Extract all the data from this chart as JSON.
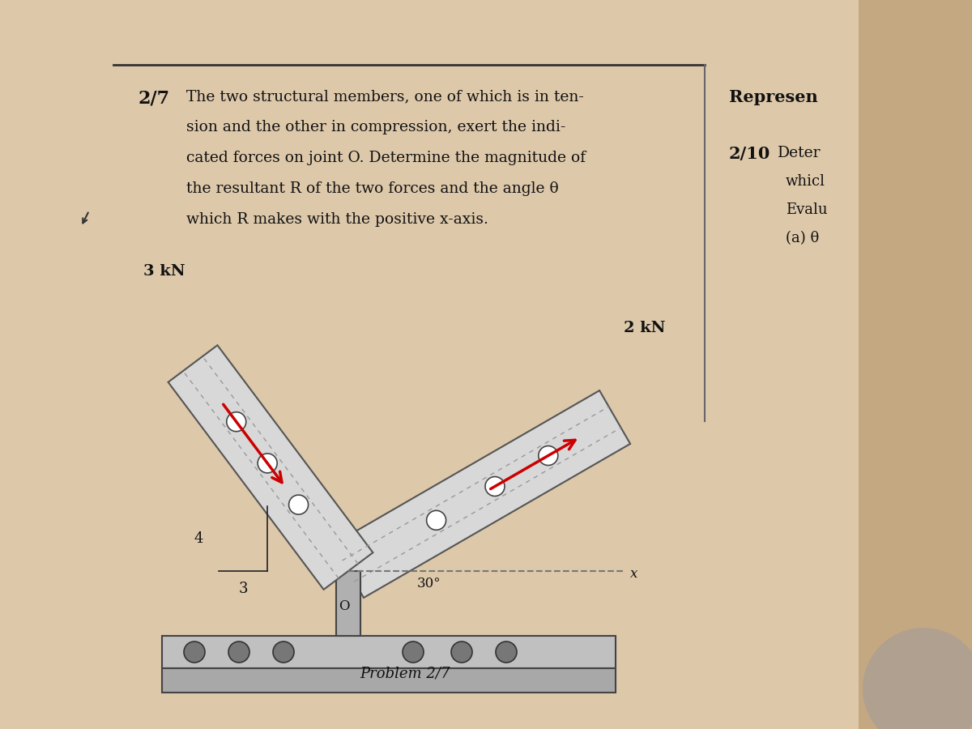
{
  "bg_color": "#c4a882",
  "page_bg": "#ddc8aa",
  "title_number": "2/7",
  "problem_text_lines": [
    "The two structural members, one of which is in ten-",
    "sion and the other in compression, exert the indi-",
    "cated forces on joint O. Determine the magnitude of",
    "the resultant R of the two forces and the angle θ",
    "which R makes with the positive x-axis."
  ],
  "side_title": "Represen",
  "side_2_10": "2/10",
  "side_deter": "Deter",
  "side_texts": [
    "whicl",
    "Evalu",
    "(a) θ"
  ],
  "force1_label": "3 kN",
  "force2_label": "2 kN",
  "label_4": "4",
  "label_3": "3",
  "label_30": "30°",
  "label_O": "O",
  "label_x": "x",
  "caption": "Problem 2/7",
  "arrow_color": "#cc0000",
  "member_fill_light": "#d8d8d8",
  "member_fill_dark": "#b8b8b8",
  "member_edge": "#555555",
  "base_fill_top": "#c0c0c0",
  "base_fill_bot": "#a8a8a8",
  "hole_fill": "#888888",
  "dashed_color": "#777777",
  "sep_line_color": "#666666",
  "top_line_color": "#333333"
}
